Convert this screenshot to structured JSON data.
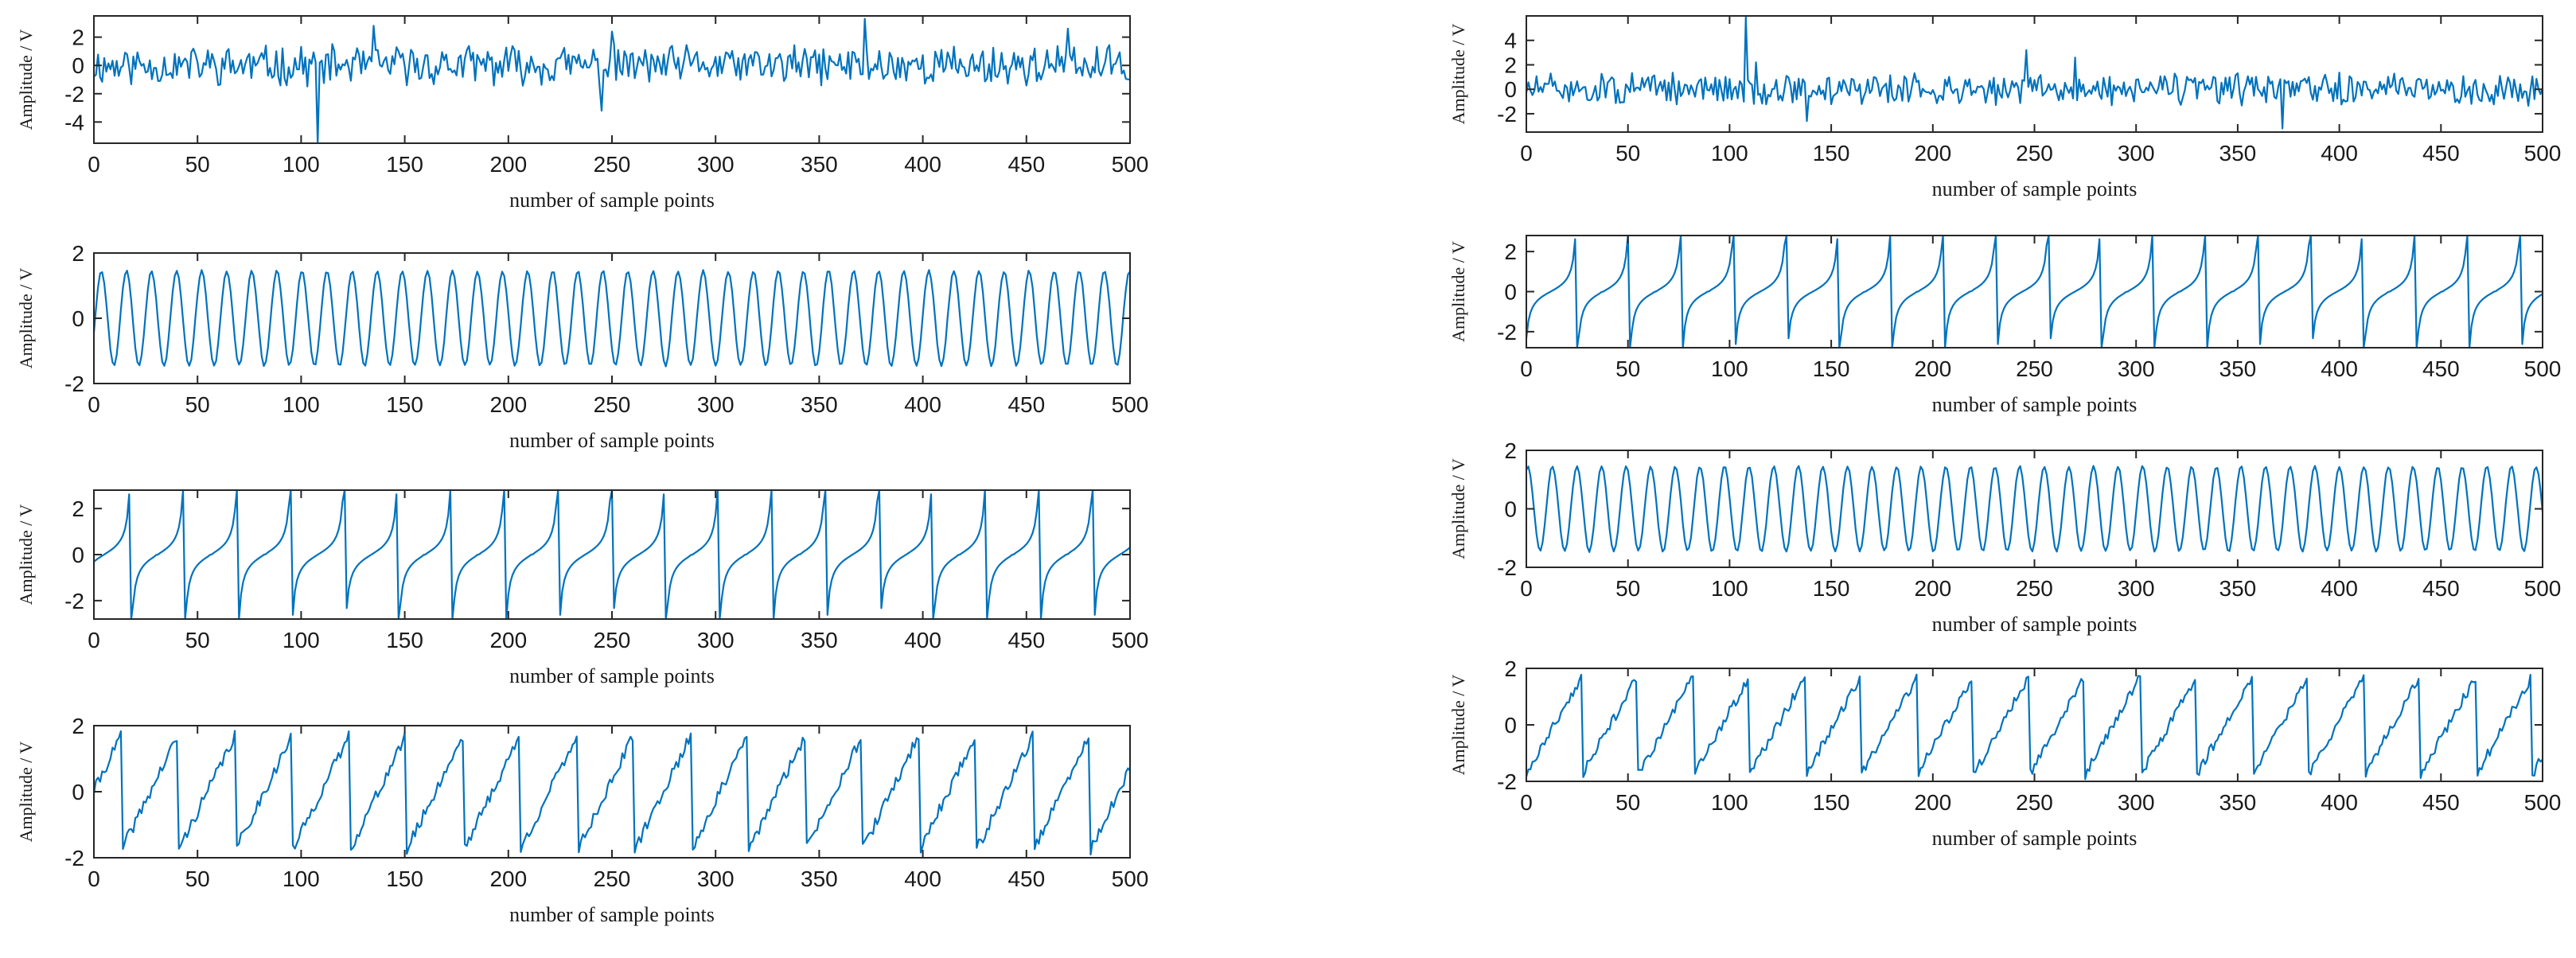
{
  "figure": {
    "background": "#ffffff",
    "line_color": "#0072bd",
    "axis_color": "#262626"
  },
  "chart_data": [
    {
      "id": "left-1",
      "type": "line",
      "column": "left",
      "xlabel": "number of sample points",
      "ylabel": "Amplitude / V",
      "xlim": [
        0,
        500
      ],
      "ylim": [
        -5.5,
        3.5
      ],
      "xticks": [
        0,
        50,
        100,
        150,
        200,
        250,
        300,
        350,
        400,
        450,
        500
      ],
      "yticks": [
        2,
        0,
        -2,
        -4
      ],
      "grid": false,
      "signal": {
        "kind": "noise",
        "amplitude": 1.2,
        "seed": 11,
        "spikes": [
          [
            108,
            -5.5
          ],
          [
            135,
            2.8
          ],
          [
            245,
            -3.2
          ],
          [
            250,
            2.4
          ],
          [
            372,
            3.3
          ],
          [
            470,
            2.6
          ]
        ]
      }
    },
    {
      "id": "left-2",
      "type": "line",
      "column": "left",
      "xlabel": "number of sample points",
      "ylabel": "Amplitude / V",
      "xlim": [
        0,
        500
      ],
      "ylim": [
        -2,
        2
      ],
      "xticks": [
        0,
        50,
        100,
        150,
        200,
        250,
        300,
        350,
        400,
        450,
        500
      ],
      "yticks": [
        2,
        0,
        -2
      ],
      "grid": false,
      "signal": {
        "kind": "sine",
        "amplitude": 1.45,
        "period": 12.1,
        "phase": -0.3,
        "noise": 0.06,
        "seed": 21
      }
    },
    {
      "id": "left-3",
      "type": "line",
      "column": "left",
      "xlabel": "number of sample points",
      "ylabel": "Amplitude / V",
      "xlim": [
        0,
        500
      ],
      "ylim": [
        -2.8,
        2.8
      ],
      "xticks": [
        0,
        50,
        100,
        150,
        200,
        250,
        300,
        350,
        400,
        450,
        500
      ],
      "yticks": [
        2,
        0,
        -2
      ],
      "grid": false,
      "signal": {
        "kind": "tan",
        "amplitude": 2.8,
        "period": 25.8,
        "offset": 8,
        "seed": 31
      }
    },
    {
      "id": "left-4",
      "type": "line",
      "column": "left",
      "xlabel": "number of sample points",
      "ylabel": "Amplitude / V",
      "xlim": [
        0,
        500
      ],
      "ylim": [
        -2,
        2
      ],
      "xticks": [
        0,
        50,
        100,
        150,
        200,
        250,
        300,
        350,
        400,
        450,
        500
      ],
      "yticks": [
        2,
        0,
        -2
      ],
      "grid": false,
      "signal": {
        "kind": "sawtooth",
        "amplitude": 1.75,
        "period": 27.5,
        "offset": 14,
        "noise": 0.18,
        "seed": 41
      }
    },
    {
      "id": "right-1",
      "type": "line",
      "column": "right",
      "xlabel": "number of sample points",
      "ylabel": "Amplitude / V",
      "xlim": [
        0,
        500
      ],
      "ylim": [
        -3.5,
        6
      ],
      "xticks": [
        0,
        50,
        100,
        150,
        200,
        250,
        300,
        350,
        400,
        450,
        500
      ],
      "yticks": [
        4,
        2,
        0,
        -2
      ],
      "grid": false,
      "signal": {
        "kind": "noise",
        "amplitude": 1.1,
        "seed": 51,
        "spikes": [
          [
            108,
            5.9
          ],
          [
            113,
            2.2
          ],
          [
            246,
            3.2
          ],
          [
            270,
            2.6
          ],
          [
            372,
            -3.2
          ],
          [
            138,
            -2.6
          ]
        ]
      }
    },
    {
      "id": "right-2",
      "type": "line",
      "column": "right",
      "xlabel": "number of sample points",
      "ylabel": "Amplitude / V",
      "xlim": [
        0,
        500
      ],
      "ylim": [
        -2.8,
        2.8
      ],
      "xticks": [
        0,
        50,
        100,
        150,
        200,
        250,
        300,
        350,
        400,
        450,
        500
      ],
      "yticks": [
        2,
        0,
        -2
      ],
      "grid": false,
      "signal": {
        "kind": "tan",
        "amplitude": 2.8,
        "period": 25.8,
        "offset": 1,
        "seed": 61
      }
    },
    {
      "id": "right-3",
      "type": "line",
      "column": "right",
      "xlabel": "number of sample points",
      "ylabel": "Amplitude / V",
      "xlim": [
        0,
        500
      ],
      "ylim": [
        -2,
        2
      ],
      "xticks": [
        0,
        50,
        100,
        150,
        200,
        250,
        300,
        350,
        400,
        450,
        500
      ],
      "yticks": [
        2,
        0,
        -2
      ],
      "grid": false,
      "signal": {
        "kind": "sine",
        "amplitude": 1.45,
        "period": 12.1,
        "phase": 1.2,
        "noise": 0.06,
        "seed": 71
      }
    },
    {
      "id": "right-4",
      "type": "line",
      "column": "right",
      "xlabel": "number of sample points",
      "ylabel": "Amplitude / V",
      "xlim": [
        0,
        500
      ],
      "ylim": [
        -2,
        2
      ],
      "xticks": [
        0,
        50,
        100,
        150,
        200,
        250,
        300,
        350,
        400,
        450,
        500
      ],
      "yticks": [
        2,
        0,
        -2
      ],
      "grid": false,
      "signal": {
        "kind": "sawtooth",
        "amplitude": 1.75,
        "period": 27.5,
        "offset": 0,
        "noise": 0.18,
        "seed": 81
      }
    }
  ]
}
